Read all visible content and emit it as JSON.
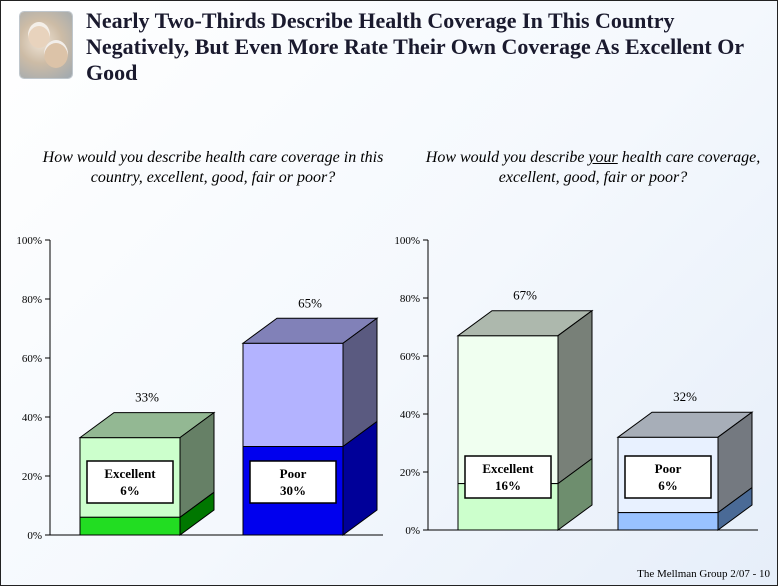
{
  "title": "Nearly Two-Thirds Describe Health Coverage In This Country Negatively, But Even More Rate Their Own Coverage As Excellent Or Good",
  "footer": "The Mellman Group  2/07 - 10",
  "chart_data": [
    {
      "type": "bar",
      "question": "How would you describe health care coverage in this country, excellent, good, fair or poor?",
      "ylim": [
        0,
        100
      ],
      "yticks": [
        "0%",
        "20%",
        "40%",
        "60%",
        "80%",
        "100%"
      ],
      "bars": [
        {
          "total": 33,
          "total_label": "33%",
          "inner": 6,
          "inner_name": "Excellent",
          "inner_label": "6%",
          "colors": {
            "front": "#ccffcc",
            "inner": "#22dd22",
            "accent": "#007700"
          }
        },
        {
          "total": 65,
          "total_label": "65%",
          "inner": 30,
          "inner_name": "Poor",
          "inner_label": "30%",
          "colors": {
            "front": "#b3b3ff",
            "inner": "#0000ee",
            "accent": "#000099"
          }
        }
      ]
    },
    {
      "type": "bar",
      "question_parts": [
        "How would you describe ",
        "your",
        " health care coverage, excellent, good, fair or poor?"
      ],
      "ylim": [
        0,
        100
      ],
      "yticks": [
        "0%",
        "20%",
        "40%",
        "60%",
        "80%",
        "100%"
      ],
      "bars": [
        {
          "total": 67,
          "total_label": "67%",
          "inner": 16,
          "inner_name": "Excellent",
          "inner_label": "16%",
          "colors": {
            "front": "#f0fff0",
            "inner": "#ccffcc",
            "accent": "#6e8e6e"
          }
        },
        {
          "total": 32,
          "total_label": "32%",
          "inner": 6,
          "inner_name": "Poor",
          "inner_label": "6%",
          "colors": {
            "front": "#e8f1ff",
            "inner": "#99c2ff",
            "accent": "#4a6a96"
          }
        }
      ]
    }
  ]
}
